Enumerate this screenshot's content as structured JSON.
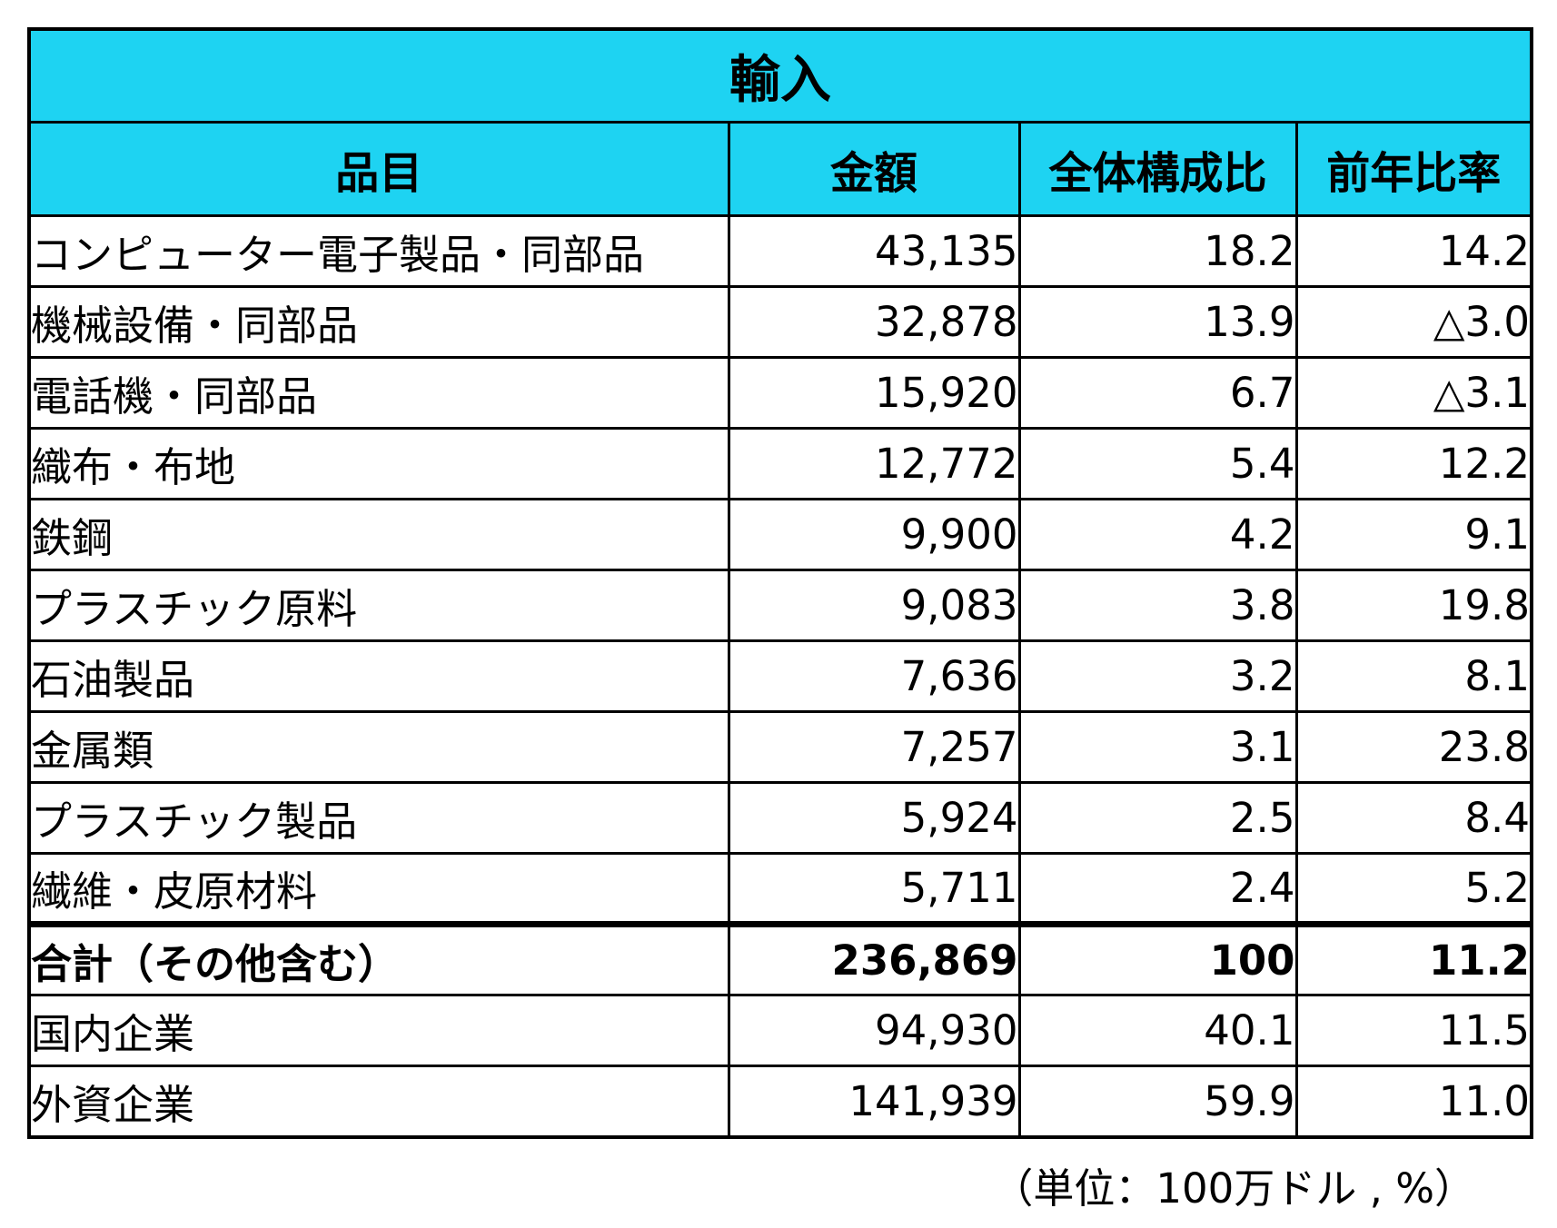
{
  "table": {
    "title": "輸入",
    "columns": [
      "品目",
      "金額",
      "全体構成比",
      "前年比率"
    ],
    "rows": [
      {
        "item": "コンピューター電子製品・同部品",
        "amount": "43,135",
        "share": "18.2",
        "yoy": "14.2",
        "bold": false,
        "thick_top": false
      },
      {
        "item": "機械設備・同部品",
        "amount": "32,878",
        "share": "13.9",
        "yoy": "△3.0",
        "bold": false,
        "thick_top": false
      },
      {
        "item": "電話機・同部品",
        "amount": "15,920",
        "share": "6.7",
        "yoy": "△3.1",
        "bold": false,
        "thick_top": false
      },
      {
        "item": "織布・布地",
        "amount": "12,772",
        "share": "5.4",
        "yoy": "12.2",
        "bold": false,
        "thick_top": false
      },
      {
        "item": "鉄鋼",
        "amount": "9,900",
        "share": "4.2",
        "yoy": "9.1",
        "bold": false,
        "thick_top": false
      },
      {
        "item": "プラスチック原料",
        "amount": "9,083",
        "share": "3.8",
        "yoy": "19.8",
        "bold": false,
        "thick_top": false
      },
      {
        "item": "石油製品",
        "amount": "7,636",
        "share": "3.2",
        "yoy": "8.1",
        "bold": false,
        "thick_top": false
      },
      {
        "item": "金属類",
        "amount": "7,257",
        "share": "3.1",
        "yoy": "23.8",
        "bold": false,
        "thick_top": false
      },
      {
        "item": "プラスチック製品",
        "amount": "5,924",
        "share": "2.5",
        "yoy": "8.4",
        "bold": false,
        "thick_top": false
      },
      {
        "item": "繊維・皮原材料",
        "amount": "5,711",
        "share": "2.4",
        "yoy": "5.2",
        "bold": false,
        "thick_top": false
      },
      {
        "item": "合計（その他含む）",
        "amount": "236,869",
        "share": "100",
        "yoy": "11.2",
        "bold": true,
        "thick_top": true
      },
      {
        "item": "国内企業",
        "amount": "94,930",
        "share": "40.1",
        "yoy": "11.5",
        "bold": false,
        "thick_top": false
      },
      {
        "item": "外資企業",
        "amount": "141,939",
        "share": "59.9",
        "yoy": "11.0",
        "bold": false,
        "thick_top": false
      }
    ],
    "footnote": "（単位：100万ドル , %）",
    "colors": {
      "header_bg": "#1ed3f2",
      "border": "#000000",
      "text": "#000000",
      "background": "#ffffff"
    }
  }
}
